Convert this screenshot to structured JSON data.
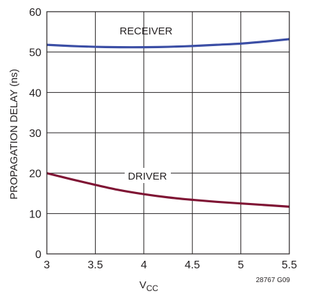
{
  "chart_data": {
    "type": "line",
    "title": "",
    "xlabel": {
      "main": "V",
      "sub": "CC"
    },
    "ylabel": "PROPAGATION DELAY (ns)",
    "xlim": [
      3,
      5.5
    ],
    "ylim": [
      0,
      60
    ],
    "xticks": [
      "3",
      "3.5",
      "4",
      "4.5",
      "5",
      "5.5"
    ],
    "yticks": [
      "0",
      "10",
      "20",
      "30",
      "40",
      "50",
      "60"
    ],
    "grid": true,
    "series": [
      {
        "name": "RECEIVER",
        "color": "#3b4ea5",
        "x": [
          3,
          3.25,
          3.5,
          3.75,
          4,
          4.25,
          4.5,
          4.75,
          5,
          5.25,
          5.5
        ],
        "y": [
          51.8,
          51.5,
          51.3,
          51.2,
          51.2,
          51.3,
          51.5,
          51.8,
          52.1,
          52.6,
          53.2
        ]
      },
      {
        "name": "DRIVER",
        "color": "#7f1434",
        "x": [
          3,
          3.25,
          3.5,
          3.75,
          4,
          4.25,
          4.5,
          4.75,
          5,
          5.25,
          5.5
        ],
        "y": [
          20.0,
          18.5,
          17.1,
          15.8,
          14.8,
          14.0,
          13.4,
          12.9,
          12.5,
          12.1,
          11.7
        ]
      }
    ],
    "figure_id": "28767 G09"
  }
}
